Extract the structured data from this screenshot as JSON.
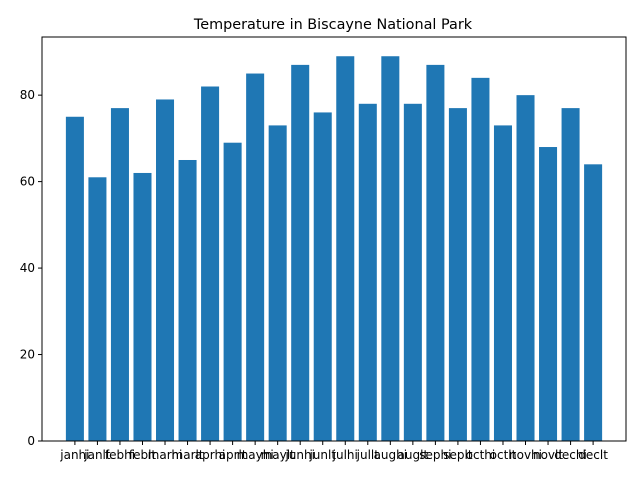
{
  "chart_data": {
    "type": "bar",
    "title": "Temperature in Biscayne National Park",
    "xlabel": "",
    "ylabel": "",
    "categories": [
      "janhi",
      "janlt",
      "febhi",
      "feblt",
      "marhi",
      "marlt",
      "aprhi",
      "aprlt",
      "mayhi",
      "maylt",
      "junhi",
      "junlt",
      "julhi",
      "jullt",
      "aughi",
      "auglt",
      "sephi",
      "seplt",
      "octhi",
      "octlt",
      "novhi",
      "novlt",
      "dechi",
      "declt"
    ],
    "values": [
      75,
      61,
      77,
      62,
      79,
      65,
      82,
      69,
      85,
      73,
      87,
      76,
      89,
      78,
      89,
      78,
      87,
      77,
      84,
      73,
      80,
      68,
      77,
      64
    ],
    "ylim": [
      0,
      93.45
    ],
    "yticks": [
      0,
      20,
      40,
      60,
      80
    ],
    "grid": false,
    "colors": {
      "bar": "#1f77b4",
      "axis": "#000000",
      "background": "#ffffff"
    }
  }
}
